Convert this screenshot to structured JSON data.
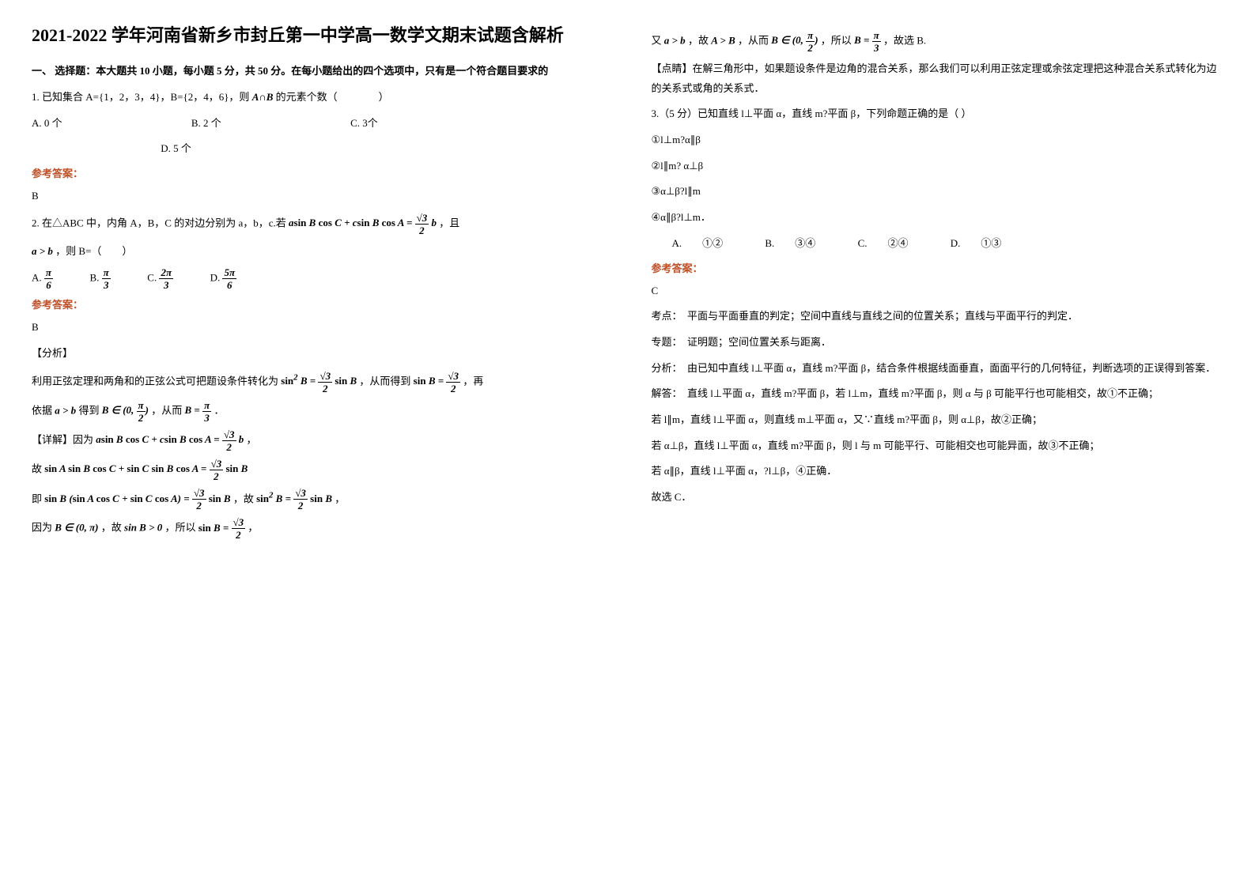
{
  "title": "2021-2022 学年河南省新乡市封丘第一中学高一数学文期末试题含解析",
  "section1_head": "一、 选择题：本大题共 10 小题，每小题 5 分，共 50 分。在每小题给出的四个选项中，只有是一个符合题目要求的",
  "q1": {
    "stem": "1. 已知集合 A={1，2，3，4}，B={2，4，6}，则",
    "stem_tail": " 的元素个数（　　　　）",
    "set_expr": "A∩B",
    "opts": {
      "A": "A. 0 个",
      "B": "B. 2 个",
      "C": "C. 3个",
      "D": "D. 5 个"
    },
    "ans_label": "参考答案：",
    "ans": "B"
  },
  "q2": {
    "stem_a": "2. 在△ABC 中，内角 A，B，C 的对边分别为 a，b，c.若",
    "stem_b": "，且",
    "cond2": "a > b",
    "stem_c": "，则 B=（　　）",
    "opts_prefix": {
      "A": "A.",
      "B": "B.",
      "C": "C.",
      "D": "D."
    },
    "ans_label": "参考答案：",
    "ans": "B",
    "analysis_tag": "【分析】",
    "line1a": "利用正弦定理和两角和的正弦公式可把题设条件转化为",
    "line1b": "，从而得到",
    "line1c": "，再",
    "line2a": "依据",
    "line2a_cond": "a > b",
    "line2b": " 得到",
    "line2c": "，从而",
    "line2d": "．",
    "detail_tag": "【详解】因为",
    "detail_tail": "，",
    "so": "故",
    "ie": "即",
    "ie_tail_a": "，故",
    "ie_tail_b": "，",
    "because_a": "因为",
    "because_b": "，故",
    "because_c": "，所以",
    "because_d": "，",
    "col2_line1a": "又",
    "col2_line1b": "，故",
    "col2_line1c": "，从而",
    "col2_line1d": "，所以",
    "col2_line1e": "，故选 B.",
    "dianjing": "【点睛】在解三角形中，如果题设条件是边角的混合关系，那么我们可以利用正弦定理或余弦定理把这种混合关系式转化为边的关系式或角的关系式．",
    "math": {
      "AgtB": "A > B",
      "agt_b": "a > b",
      "B_in_0pi": "B ∈ (0, π)",
      "sinB_gt0": "sin B > 0"
    }
  },
  "q3": {
    "stem": "3.（5 分）已知直线 l⊥平面 α，直线 m?平面 β，下列命题正确的是（ ）",
    "c1": "①l⊥m?α∥β",
    "c2": "②l∥m? α⊥β",
    "c3": "③α⊥β?l∥m",
    "c4": "④α∥β?l⊥m．",
    "opts": {
      "A": "A.　　①②",
      "B": "B.　　③④",
      "C": "C.　　②④",
      "D": "D.　　①③"
    },
    "ans_label": "参考答案：",
    "ans": "C",
    "kd": "考点：　平面与平面垂直的判定；空间中直线与直线之间的位置关系；直线与平面平行的判定．",
    "zt": "专题：　证明题；空间位置关系与距离．",
    "fx": "分析：　由已知中直线 l⊥平面 α，直线 m?平面 β，结合条件根据线面垂直，面面平行的几何特征，判断选项的正误得到答案．",
    "jd1": "解答：　直线 l⊥平面 α，直线 m?平面 β，若 l⊥m，直线 m?平面 β，则 α 与 β 可能平行也可能相交，故①不正确；",
    "jd2": "若 l∥m，直线 l⊥平面 α，则直线 m⊥平面 α，又∵直线 m?平面 β，则 α⊥β，故②正确；",
    "jd3": "若 α⊥β，直线 l⊥平面 α，直线 m?平面 β，则 l 与 m 可能平行、可能相交也可能异面，故③不正确；",
    "jd4": "若 α∥β，直线 l⊥平面 α，?l⊥β，④正确．",
    "jd5": "故选 C．"
  }
}
